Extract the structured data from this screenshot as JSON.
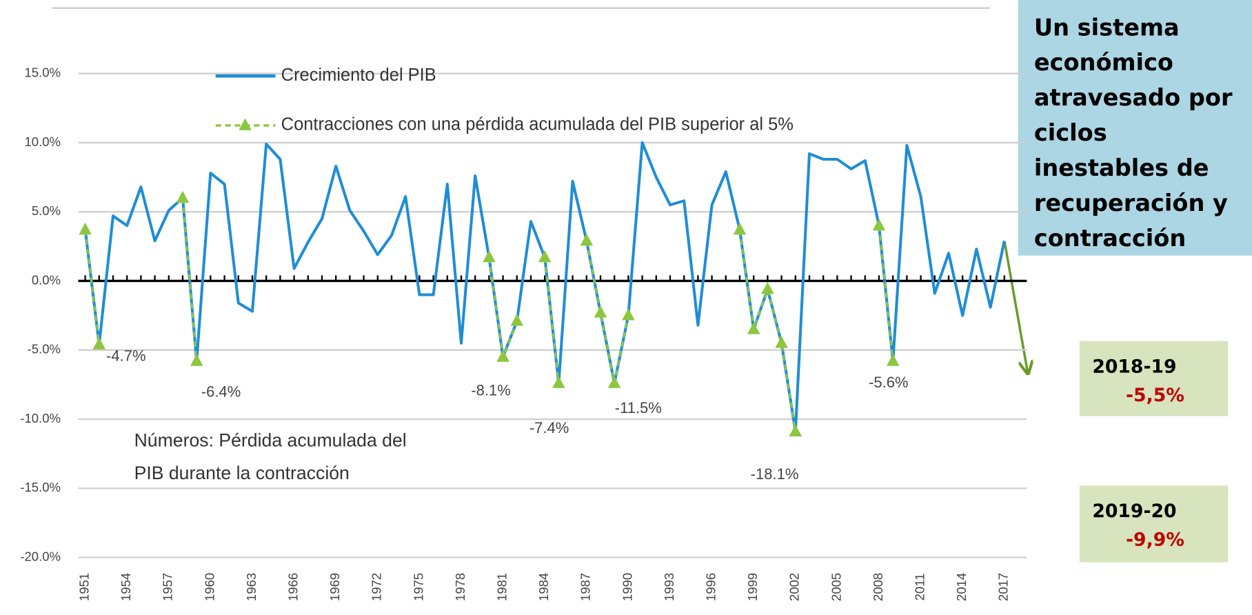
{
  "chart_data": {
    "type": "line",
    "x": [
      1951,
      1952,
      1953,
      1954,
      1955,
      1956,
      1957,
      1958,
      1959,
      1960,
      1961,
      1962,
      1963,
      1964,
      1965,
      1966,
      1967,
      1968,
      1969,
      1970,
      1971,
      1972,
      1973,
      1974,
      1975,
      1976,
      1977,
      1978,
      1979,
      1980,
      1981,
      1982,
      1983,
      1984,
      1985,
      1986,
      1987,
      1988,
      1989,
      1990,
      1991,
      1992,
      1993,
      1994,
      1995,
      1996,
      1997,
      1998,
      1999,
      2000,
      2001,
      2002,
      2003,
      2004,
      2005,
      2006,
      2007,
      2008,
      2009,
      2010,
      2011,
      2012,
      2013,
      2014,
      2015,
      2016,
      2017
    ],
    "xlim": [
      1950.5,
      2018.5
    ],
    "xticks": [
      1951,
      1954,
      1957,
      1960,
      1963,
      1966,
      1969,
      1972,
      1975,
      1978,
      1981,
      1984,
      1987,
      1990,
      1993,
      1996,
      1999,
      2002,
      2005,
      2008,
      2011,
      2014,
      2017
    ],
    "ylim": [
      -20,
      15
    ],
    "yticks": [
      {
        "value": 15,
        "label": "15.0%"
      },
      {
        "value": 10,
        "label": "10.0%"
      },
      {
        "value": 5,
        "label": "5.0%"
      },
      {
        "value": 0,
        "label": "0.0%"
      },
      {
        "value": -5,
        "label": "-5.0%"
      },
      {
        "value": -10,
        "label": "-10.0%"
      },
      {
        "value": -15,
        "label": "-15.0%"
      },
      {
        "value": -20,
        "label": "-20.0%"
      }
    ],
    "grid": true,
    "series": [
      {
        "name": "Crecimiento del PIB",
        "color": "#1f8dd6",
        "values": [
          3.7,
          -4.6,
          4.7,
          4.0,
          6.8,
          2.9,
          5.1,
          6.0,
          -5.8,
          7.8,
          7.0,
          -1.6,
          -2.2,
          9.9,
          8.8,
          0.9,
          2.8,
          4.5,
          8.3,
          5.1,
          3.6,
          1.9,
          3.3,
          6.1,
          -1.0,
          -1.0,
          7.0,
          -4.5,
          7.6,
          1.7,
          -5.5,
          -2.9,
          4.3,
          1.7,
          -7.4,
          7.2,
          2.9,
          -2.3,
          -7.4,
          -2.5,
          10.0,
          7.5,
          5.5,
          5.8,
          -3.2,
          5.5,
          7.9,
          3.7,
          -3.5,
          -0.6,
          -4.5,
          -10.9,
          9.2,
          8.8,
          8.8,
          8.1,
          8.7,
          4.0,
          -5.8,
          9.8,
          6.1,
          -0.9,
          2.0,
          -2.5,
          2.3,
          -1.9,
          2.9
        ]
      },
      {
        "name": "Contracciones con una pérdida acumulada del PIB superior al 5%",
        "color": "#8dc63f",
        "dashed": true,
        "marker": "triangle",
        "values": [
          3.7,
          -4.6,
          null,
          null,
          null,
          null,
          null,
          6.0,
          -5.8,
          null,
          null,
          null,
          null,
          null,
          null,
          null,
          null,
          null,
          null,
          null,
          null,
          null,
          null,
          null,
          null,
          null,
          null,
          null,
          null,
          1.7,
          -5.5,
          -2.9,
          null,
          1.7,
          -7.4,
          null,
          2.9,
          -2.3,
          -7.4,
          -2.5,
          null,
          null,
          null,
          null,
          null,
          null,
          null,
          3.7,
          -3.5,
          -0.6,
          -4.5,
          -10.9,
          null,
          null,
          null,
          null,
          null,
          4.0,
          -5.8,
          null,
          null,
          null,
          null,
          null,
          null,
          null,
          null
        ]
      }
    ],
    "annotations": [
      "-4.7%",
      "-6.4%",
      "-8.1%",
      "-7.4%",
      "-11.5%",
      "-18.1%",
      "-5.6%"
    ],
    "note": [
      "Números: Pérdida acumulada del",
      "PIB durante la contracción"
    ]
  },
  "panel": {
    "lines": [
      "Un sistema",
      "económico",
      "atravesado por",
      "ciclos",
      "inestables de",
      "recuperación y",
      "contracción"
    ]
  },
  "boxes": [
    {
      "period": "2018-19",
      "value": "-5,5%"
    },
    {
      "period": "2019-20",
      "value": "-9,9%"
    }
  ]
}
